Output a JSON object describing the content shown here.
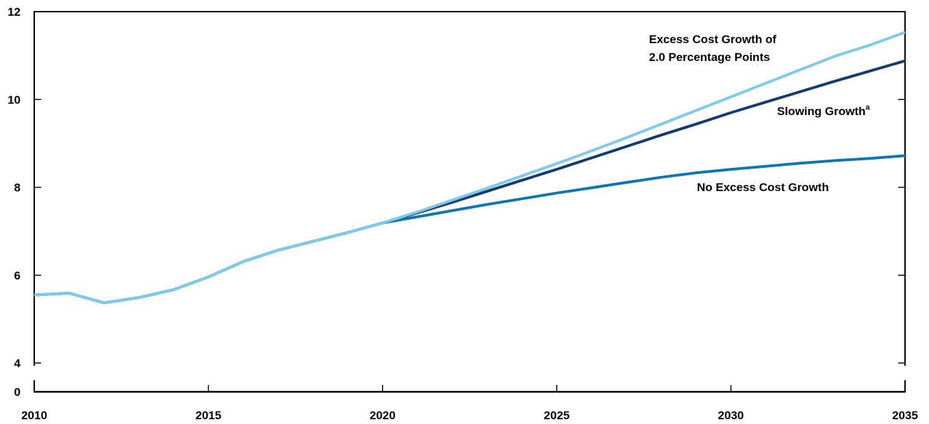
{
  "chart_data": {
    "type": "line",
    "title": "",
    "xlabel": "",
    "ylabel": "",
    "xlim": [
      2010,
      2035
    ],
    "ylim": [
      4,
      12
    ],
    "y_break": true,
    "grid": false,
    "legend": "inline labels at right",
    "x_ticks": [
      "2010",
      "2015",
      "2020",
      "2025",
      "2030",
      "2035"
    ],
    "y_ticks": [
      "4",
      "6",
      "8",
      "10",
      "12"
    ],
    "y_zero_label": "0",
    "series": [
      {
        "name": "No Excess Cost Growth",
        "label_lines": [
          "No Excess Cost Growth"
        ],
        "color": "#0f75b0",
        "x": [
          2010,
          2011,
          2012,
          2013,
          2014,
          2015,
          2016,
          2017,
          2018,
          2019,
          2020,
          2021,
          2022,
          2023,
          2024,
          2025,
          2026,
          2027,
          2028,
          2029,
          2030,
          2031,
          2032,
          2033,
          2034,
          2035
        ],
        "values": [
          5.55,
          5.59,
          5.37,
          5.49,
          5.67,
          5.96,
          6.31,
          6.57,
          6.77,
          6.97,
          7.19,
          7.33,
          7.47,
          7.61,
          7.74,
          7.87,
          7.99,
          8.11,
          8.23,
          8.33,
          8.41,
          8.48,
          8.55,
          8.61,
          8.66,
          8.72
        ]
      },
      {
        "name": "Slowing Growth",
        "label_lines": [
          "Slowing Growth"
        ],
        "label_superscript": "a",
        "color": "#153a6f",
        "x": [
          2010,
          2011,
          2012,
          2013,
          2014,
          2015,
          2016,
          2017,
          2018,
          2019,
          2020,
          2021,
          2022,
          2023,
          2024,
          2025,
          2026,
          2027,
          2028,
          2029,
          2030,
          2031,
          2032,
          2033,
          2034,
          2035
        ],
        "values": [
          5.55,
          5.59,
          5.37,
          5.49,
          5.67,
          5.96,
          6.31,
          6.57,
          6.77,
          6.97,
          7.19,
          7.42,
          7.66,
          7.91,
          8.16,
          8.41,
          8.67,
          8.93,
          9.19,
          9.44,
          9.7,
          9.94,
          10.18,
          10.42,
          10.65,
          10.88
        ]
      },
      {
        "name": "Excess Cost Growth of 2.0 Percentage Points",
        "label_lines": [
          "Excess Cost Growth of",
          "2.0 Percentage Points"
        ],
        "color": "#7ccbe8",
        "x": [
          2010,
          2011,
          2012,
          2013,
          2014,
          2015,
          2016,
          2017,
          2018,
          2019,
          2020,
          2021,
          2022,
          2023,
          2024,
          2025,
          2026,
          2027,
          2028,
          2029,
          2030,
          2031,
          2032,
          2033,
          2034,
          2035
        ],
        "values": [
          5.55,
          5.59,
          5.37,
          5.49,
          5.67,
          5.96,
          6.31,
          6.57,
          6.77,
          6.97,
          7.19,
          7.44,
          7.71,
          7.98,
          8.26,
          8.54,
          8.83,
          9.13,
          9.44,
          9.75,
          10.06,
          10.37,
          10.68,
          10.99,
          11.24,
          11.53
        ]
      }
    ]
  }
}
